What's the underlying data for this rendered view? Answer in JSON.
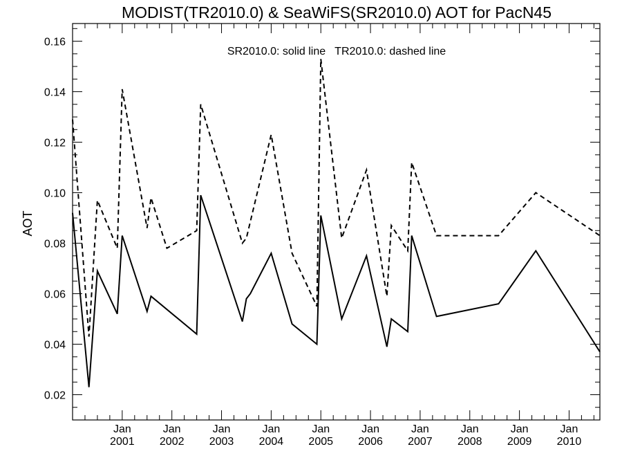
{
  "chart_data": {
    "type": "line",
    "title": "MODIST(TR2010.0) & SeaWiFS(SR2010.0)  AOT for PacN45",
    "xlabel": "",
    "ylabel": "AOT",
    "annotation": "SR2010.0: solid line   TR2010.0: dashed line",
    "xlim": [
      2000.0,
      2010.62
    ],
    "ylim": [
      0.01,
      0.167
    ],
    "yticks": [
      {
        "value": 0.02,
        "label": "0.02"
      },
      {
        "value": 0.04,
        "label": "0.04"
      },
      {
        "value": 0.06,
        "label": "0.06"
      },
      {
        "value": 0.08,
        "label": "0.08"
      },
      {
        "value": 0.1,
        "label": "0.10"
      },
      {
        "value": 0.12,
        "label": "0.12"
      },
      {
        "value": 0.14,
        "label": "0.14"
      },
      {
        "value": 0.16,
        "label": "0.16"
      }
    ],
    "xticks": [
      {
        "value": 2001,
        "month": "Jan",
        "year": "2001"
      },
      {
        "value": 2002,
        "month": "Jan",
        "year": "2002"
      },
      {
        "value": 2003,
        "month": "Jan",
        "year": "2003"
      },
      {
        "value": 2004,
        "month": "Jan",
        "year": "2004"
      },
      {
        "value": 2005,
        "month": "Jan",
        "year": "2005"
      },
      {
        "value": 2006,
        "month": "Jan",
        "year": "2006"
      },
      {
        "value": 2007,
        "month": "Jan",
        "year": "2007"
      },
      {
        "value": 2008,
        "month": "Jan",
        "year": "2008"
      },
      {
        "value": 2009,
        "month": "Jan",
        "year": "2009"
      },
      {
        "value": 2010,
        "month": "Jan",
        "year": "2010"
      }
    ],
    "series": [
      {
        "name": "SR2010.0",
        "style": "solid",
        "color": "#000000",
        "points": [
          [
            2000.0,
            0.092
          ],
          [
            2000.33,
            0.023
          ],
          [
            2000.5,
            0.069
          ],
          [
            2000.9,
            0.052
          ],
          [
            2001.0,
            0.083
          ],
          [
            2001.5,
            0.053
          ],
          [
            2001.58,
            0.059
          ],
          [
            2002.5,
            0.044
          ],
          [
            2002.58,
            0.099
          ],
          [
            2003.42,
            0.049
          ],
          [
            2003.5,
            0.058
          ],
          [
            2003.58,
            0.06
          ],
          [
            2004.0,
            0.076
          ],
          [
            2004.42,
            0.048
          ],
          [
            2004.92,
            0.04
          ],
          [
            2005.0,
            0.091
          ],
          [
            2005.42,
            0.05
          ],
          [
            2005.92,
            0.075
          ],
          [
            2006.33,
            0.039
          ],
          [
            2006.42,
            0.05
          ],
          [
            2006.75,
            0.045
          ],
          [
            2006.83,
            0.083
          ],
          [
            2007.33,
            0.051
          ],
          [
            2008.58,
            0.056
          ],
          [
            2009.33,
            0.077
          ],
          [
            2010.62,
            0.037
          ]
        ]
      },
      {
        "name": "TR2010.0",
        "style": "dashed",
        "color": "#000000",
        "points": [
          [
            2000.0,
            0.129
          ],
          [
            2000.33,
            0.043
          ],
          [
            2000.5,
            0.097
          ],
          [
            2000.9,
            0.078
          ],
          [
            2001.0,
            0.141
          ],
          [
            2001.5,
            0.086
          ],
          [
            2001.58,
            0.098
          ],
          [
            2001.9,
            0.078
          ],
          [
            2002.5,
            0.085
          ],
          [
            2002.58,
            0.135
          ],
          [
            2003.42,
            0.08
          ],
          [
            2003.5,
            0.082
          ],
          [
            2004.0,
            0.123
          ],
          [
            2004.42,
            0.076
          ],
          [
            2004.92,
            0.055
          ],
          [
            2005.0,
            0.153
          ],
          [
            2005.42,
            0.082
          ],
          [
            2005.92,
            0.109
          ],
          [
            2006.33,
            0.059
          ],
          [
            2006.42,
            0.087
          ],
          [
            2006.75,
            0.077
          ],
          [
            2006.83,
            0.112
          ],
          [
            2007.33,
            0.083
          ],
          [
            2008.58,
            0.083
          ],
          [
            2009.33,
            0.1
          ],
          [
            2010.62,
            0.083
          ]
        ]
      }
    ]
  }
}
